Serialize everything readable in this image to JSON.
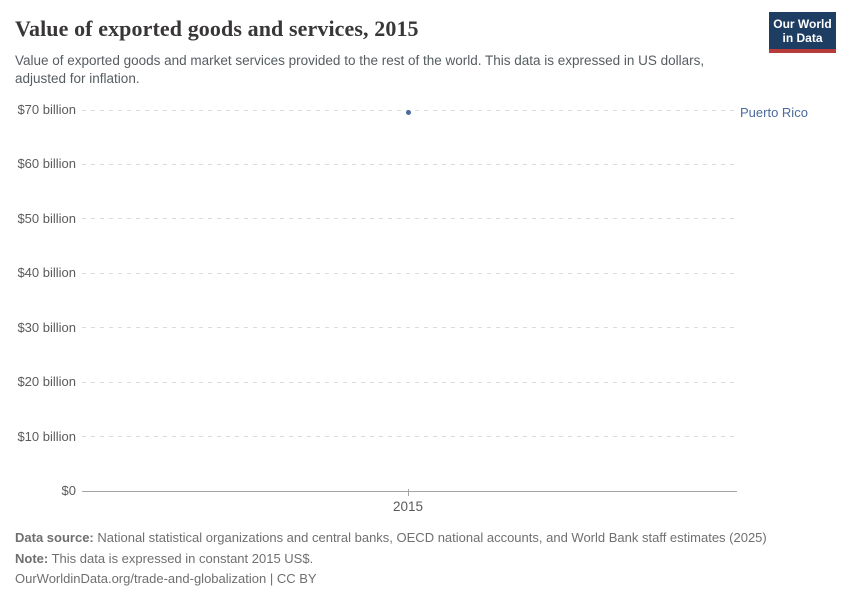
{
  "header": {
    "title": "Value of exported goods and services, 2015",
    "subtitle": "Value of exported goods and market services provided to the rest of the world. This data is expressed in US dollars, adjusted for inflation.",
    "logo": {
      "line1": "Our World",
      "line2": "in Data"
    }
  },
  "chart_data": {
    "type": "scatter",
    "title": "Value of exported goods and services, 2015",
    "xlabel": "",
    "ylabel": "",
    "unit": "US$ billion",
    "ylim": [
      0,
      70
    ],
    "grid": "horizontal-dashed",
    "legend_position": "right-of-plot",
    "y_ticks": [
      {
        "value": 0,
        "label": "$0"
      },
      {
        "value": 10,
        "label": "$10 billion"
      },
      {
        "value": 20,
        "label": "$20 billion"
      },
      {
        "value": 30,
        "label": "$30 billion"
      },
      {
        "value": 40,
        "label": "$40 billion"
      },
      {
        "value": 50,
        "label": "$50 billion"
      },
      {
        "value": 60,
        "label": "$60 billion"
      },
      {
        "value": 70,
        "label": "$70 billion"
      }
    ],
    "x_ticks": [
      {
        "value": 2015,
        "label": "2015"
      }
    ],
    "points": [
      {
        "entity": "Puerto Rico",
        "year": 2015,
        "value_billion_usd": 69.5,
        "label": "Puerto Rico",
        "color": "#4C6A9C"
      }
    ]
  },
  "colors": {
    "accent_blue": "#4C6A9C",
    "logo_navy": "#1d3d63",
    "logo_red": "#b63c3c",
    "gridline": "#dcdcdc",
    "axis": "#a5a5a5",
    "text_title": "#383636",
    "text_muted": "#5b5b5b"
  },
  "footer": {
    "data_source_label": "Data source:",
    "data_source_text": " National statistical organizations and central banks, OECD national accounts, and World Bank staff estimates (2025)",
    "note_label": "Note:",
    "note_text": " This data is expressed in constant 2015 US$.",
    "citation": "OurWorldinData.org/trade-and-globalization | CC BY"
  }
}
